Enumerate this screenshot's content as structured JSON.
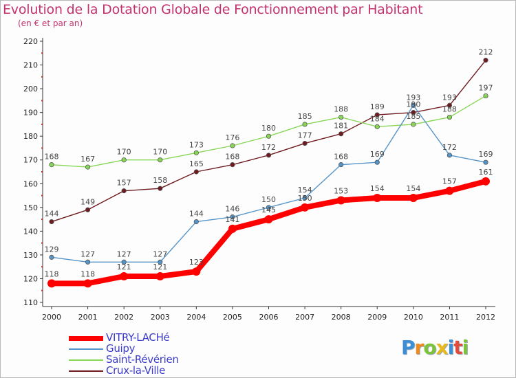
{
  "chart_data": {
    "type": "line",
    "title": "Evolution de la Dotation Globale de Fonctionnement par Habitant",
    "subtitle": "(en € et par an)",
    "xlabel": "",
    "ylabel": "",
    "x": [
      "2000",
      "2001",
      "2002",
      "2003",
      "2004",
      "2005",
      "2006",
      "2007",
      "2008",
      "2009",
      "2010",
      "2011",
      "2012"
    ],
    "ylim": [
      110,
      220
    ],
    "yticks": [
      110,
      120,
      130,
      140,
      150,
      160,
      170,
      180,
      190,
      200,
      210,
      220
    ],
    "grid": false,
    "legend_position": "bottom-left",
    "series": [
      {
        "name": "VITRY-LACHé",
        "color": "#ff0000",
        "values": [
          118,
          118,
          121,
          121,
          123,
          141,
          145,
          150,
          153,
          154,
          154,
          157,
          161
        ]
      },
      {
        "name": "Guipy",
        "color": "#5594c8",
        "values": [
          129,
          127,
          127,
          127,
          144,
          146,
          150,
          154,
          168,
          169,
          193,
          172,
          169
        ]
      },
      {
        "name": "Saint-Révérien",
        "color": "#88d655",
        "values": [
          168,
          167,
          170,
          170,
          173,
          176,
          180,
          185,
          188,
          184,
          185,
          188,
          197
        ]
      },
      {
        "name": "Crux-la-Ville",
        "color": "#6e1a1e",
        "values": [
          144,
          149,
          157,
          158,
          165,
          168,
          172,
          177,
          181,
          189,
          190,
          193,
          212
        ]
      }
    ]
  },
  "logo": {
    "letters": [
      "P",
      "r",
      "o",
      "x",
      "i",
      "t",
      "i"
    ],
    "colors": [
      "#3b8fd8",
      "#f08a1c",
      "#7cc33a",
      "#e8b81c",
      "#3b8fd8",
      "#e24a3a",
      "#7cc33a"
    ]
  }
}
